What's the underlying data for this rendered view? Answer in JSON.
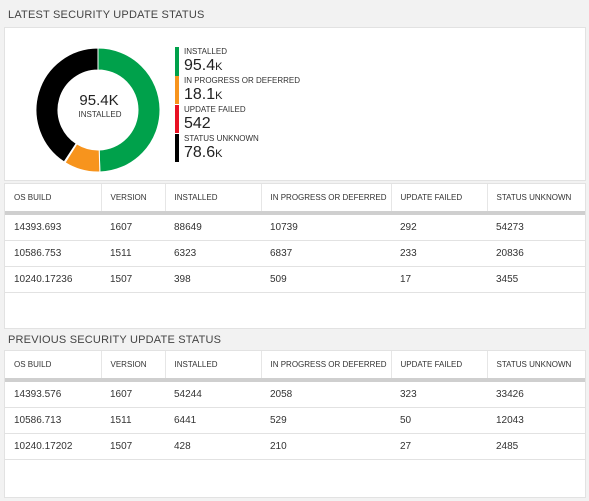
{
  "latest": {
    "title": "LATEST SECURITY UPDATE STATUS",
    "donut": {
      "center_value": "95.4K",
      "center_label": "INSTALLED",
      "segments": [
        {
          "label": "INSTALLED",
          "value_text": "95.4",
          "unit": "K",
          "color": "#00a14b"
        },
        {
          "label": "IN PROGRESS OR DEFERRED",
          "value_text": "18.1",
          "unit": "K",
          "color": "#f7941d"
        },
        {
          "label": "UPDATE FAILED",
          "value_text": "542",
          "unit": "",
          "color": "#e81123"
        },
        {
          "label": "STATUS UNKNOWN",
          "value_text": "78.6",
          "unit": "K",
          "color": "#000000"
        }
      ]
    },
    "table": {
      "columns": [
        "OS BUILD",
        "VERSION",
        "INSTALLED",
        "IN PROGRESS OR DEFERRED",
        "UPDATE FAILED",
        "STATUS UNKNOWN"
      ],
      "rows": [
        [
          "14393.693",
          "1607",
          "88649",
          "10739",
          "292",
          "54273"
        ],
        [
          "10586.753",
          "1511",
          "6323",
          "6837",
          "233",
          "20836"
        ],
        [
          "10240.17236",
          "1507",
          "398",
          "509",
          "17",
          "3455"
        ]
      ]
    }
  },
  "previous": {
    "title": "PREVIOUS SECURITY UPDATE STATUS",
    "table": {
      "columns": [
        "OS BUILD",
        "VERSION",
        "INSTALLED",
        "IN PROGRESS OR DEFERRED",
        "UPDATE FAILED",
        "STATUS UNKNOWN"
      ],
      "rows": [
        [
          "14393.576",
          "1607",
          "54244",
          "2058",
          "323",
          "33426"
        ],
        [
          "10586.713",
          "1511",
          "6441",
          "529",
          "50",
          "12043"
        ],
        [
          "10240.17202",
          "1507",
          "428",
          "210",
          "27",
          "2485"
        ]
      ]
    }
  }
}
